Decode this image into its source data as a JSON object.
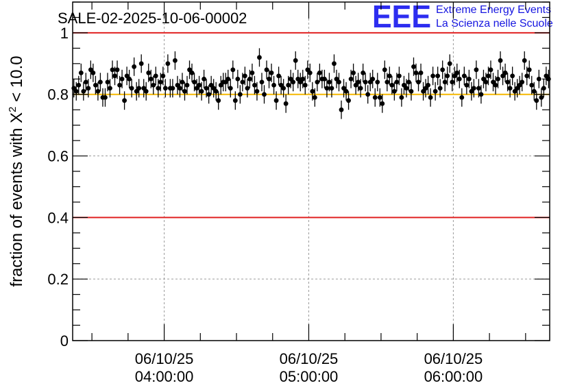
{
  "chart_data": {
    "type": "scatter",
    "title": "SALE-02-2025-10-06-00002",
    "ylabel_prefix": "fraction of events with ",
    "ylabel_symbol": "X",
    "ylabel_superscript": "2",
    "ylabel_suffix": " < 10.0",
    "xlabel": "",
    "ylim": [
      0,
      1.1
    ],
    "y_ticks": [
      "0",
      "0.2",
      "0.4",
      "0.6",
      "0.8",
      "1"
    ],
    "y_tick_values": [
      0,
      0.2,
      0.4,
      0.6,
      0.8,
      1
    ],
    "x_range_hours": [
      3.3667,
      6.6667
    ],
    "x_ticks": [
      {
        "hour": 4,
        "date": "06/10/25",
        "time": "04:00:00"
      },
      {
        "hour": 5,
        "date": "06/10/25",
        "time": "05:00:00"
      },
      {
        "hour": 6,
        "date": "06/10/25",
        "time": "06:00:00"
      }
    ],
    "grid": true,
    "reference_lines": [
      {
        "y": 1.0,
        "color": "#e02020"
      },
      {
        "y": 0.4,
        "color": "#e02020"
      },
      {
        "y": 0.8,
        "color": "#f5b800"
      }
    ],
    "series": [
      {
        "name": "fraction",
        "x_start_hour": 3.375,
        "x_step_hours": 0.01667,
        "error": 0.03,
        "values": [
          0.82,
          0.81,
          0.83,
          0.87,
          0.81,
          0.84,
          0.82,
          0.88,
          0.87,
          0.83,
          0.81,
          0.84,
          0.79,
          0.79,
          0.84,
          0.82,
          0.88,
          0.86,
          0.88,
          0.83,
          0.85,
          0.78,
          0.86,
          0.85,
          0.82,
          0.89,
          0.81,
          0.82,
          0.9,
          0.82,
          0.81,
          0.87,
          0.85,
          0.83,
          0.86,
          0.82,
          0.84,
          0.86,
          0.82,
          0.9,
          0.82,
          0.82,
          0.91,
          0.83,
          0.82,
          0.84,
          0.81,
          0.83,
          0.88,
          0.87,
          0.84,
          0.82,
          0.83,
          0.81,
          0.85,
          0.82,
          0.8,
          0.83,
          0.82,
          0.81,
          0.78,
          0.83,
          0.84,
          0.84,
          0.85,
          0.82,
          0.88,
          0.78,
          0.85,
          0.8,
          0.84,
          0.86,
          0.82,
          0.85,
          0.87,
          0.83,
          0.81,
          0.92,
          0.84,
          0.8,
          0.88,
          0.85,
          0.87,
          0.83,
          0.78,
          0.86,
          0.83,
          0.82,
          0.77,
          0.83,
          0.85,
          0.84,
          0.91,
          0.85,
          0.84,
          0.85,
          0.83,
          0.88,
          0.87,
          0.81,
          0.79,
          0.84,
          0.87,
          0.85,
          0.85,
          0.82,
          0.84,
          0.82,
          0.9,
          0.85,
          0.84,
          0.75,
          0.82,
          0.81,
          0.78,
          0.85,
          0.87,
          0.83,
          0.84,
          0.82,
          0.87,
          0.84,
          0.8,
          0.84,
          0.85,
          0.79,
          0.84,
          0.79,
          0.77,
          0.88,
          0.84,
          0.86,
          0.83,
          0.81,
          0.84,
          0.86,
          0.79,
          0.83,
          0.82,
          0.84,
          0.81,
          0.89,
          0.87,
          0.84,
          0.87,
          0.81,
          0.82,
          0.83,
          0.79,
          0.86,
          0.81,
          0.86,
          0.82,
          0.88,
          0.84,
          0.86,
          0.9,
          0.84,
          0.86,
          0.87,
          0.85,
          0.79,
          0.86,
          0.83,
          0.85,
          0.81,
          0.82,
          0.88,
          0.82,
          0.8,
          0.85,
          0.84,
          0.86,
          0.88,
          0.84,
          0.83,
          0.85,
          0.91,
          0.86,
          0.87,
          0.84,
          0.82,
          0.86,
          0.81,
          0.82,
          0.83,
          0.84,
          0.91,
          0.86,
          0.88,
          0.83,
          0.81,
          0.78,
          0.85,
          0.79,
          0.82,
          0.86,
          0.85,
          0.79
        ]
      }
    ]
  },
  "logo": {
    "letters": "EEE",
    "line1": "Extreme Energy Events",
    "line2": "La Scienza nelle Scuole",
    "color": "#2d2df0"
  }
}
